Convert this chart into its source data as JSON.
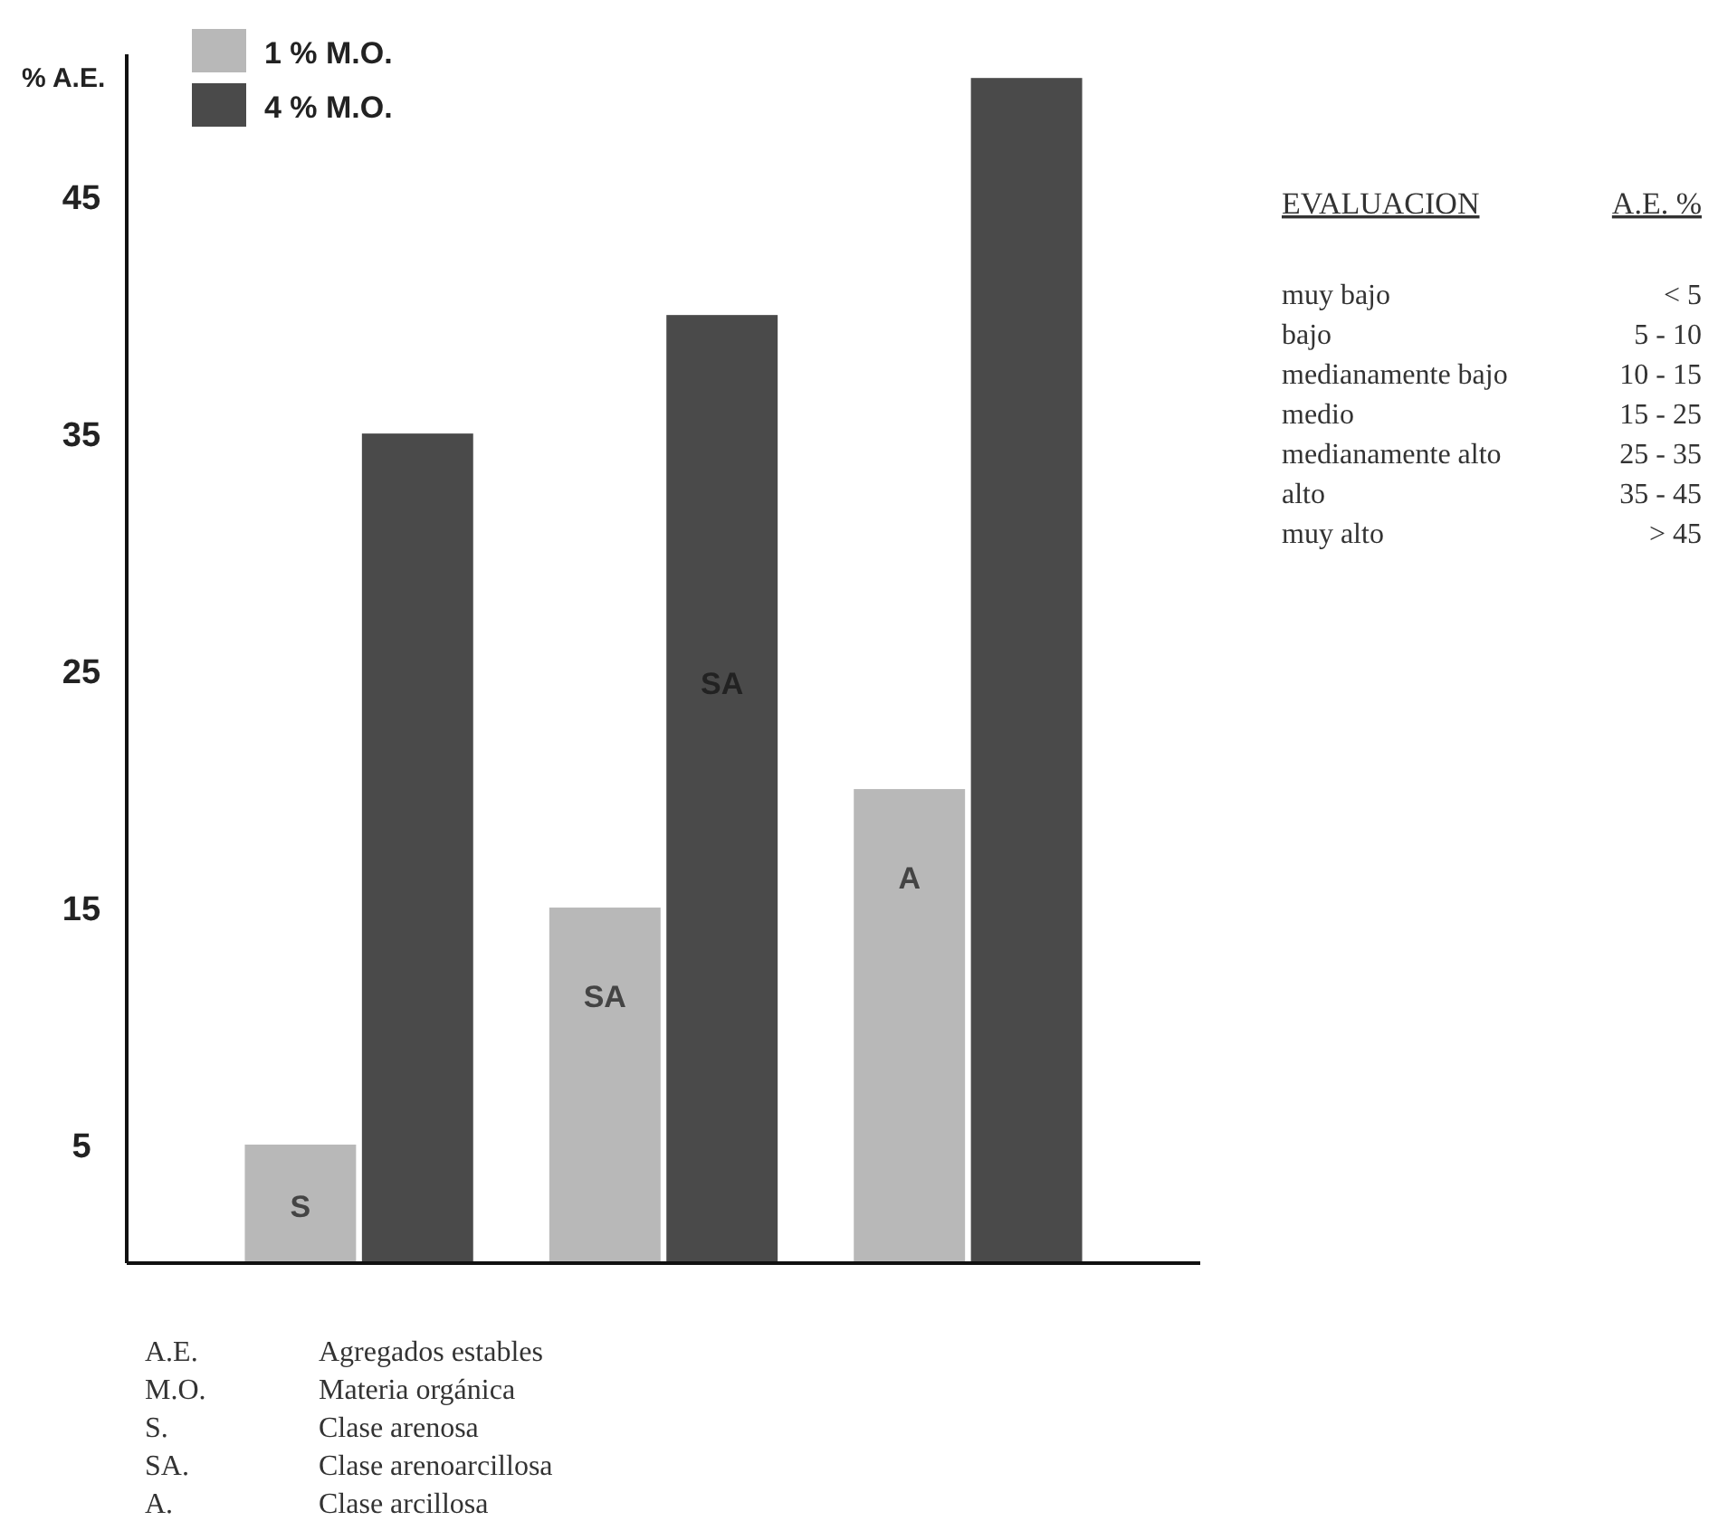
{
  "chart_data": {
    "type": "bar",
    "ylabel": "% A.E.",
    "categories": [
      null,
      null,
      null
    ],
    "series": [
      {
        "name": "1 % M.O.",
        "color": "#b8b8b8",
        "values": [
          5,
          15,
          20
        ],
        "value_labels": [
          "S",
          "SA",
          "A"
        ]
      },
      {
        "name": "4 % M.O.",
        "color": "#4a4a4a",
        "values": [
          35,
          40,
          50
        ],
        "value_labels": [
          null,
          "SA",
          null
        ]
      }
    ],
    "ylim": [
      0,
      51
    ],
    "yticks": [
      5,
      15,
      25,
      35,
      45
    ],
    "grid": false,
    "legend": "top left",
    "annotations": [
      "EVALUACION",
      "A.E. %",
      "muy bajo",
      "< 5",
      "bajo",
      "5 - 10",
      "medianamente bajo",
      "10 - 15",
      "medio",
      "15 - 25",
      "medianamente alto",
      "25 - 35",
      "alto",
      "35 - 45",
      "muy alto",
      "> 45",
      "A.E.",
      "Agregados estables",
      "M.O.",
      "Materia orgánica",
      "S.",
      "Clase arenosa",
      "SA.",
      "Clase arenoarcillosa",
      "A.",
      "Clase arcillosa"
    ]
  }
}
